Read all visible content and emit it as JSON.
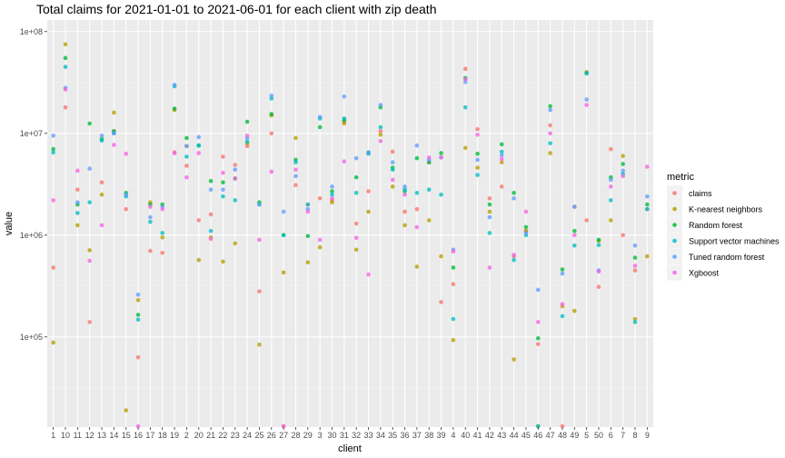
{
  "chart_data": {
    "type": "scatter",
    "title": "Total claims for 2021-01-01 to 2021-06-01 for each client with zip death",
    "xlabel": "client",
    "ylabel": "value",
    "y_scale": "log10",
    "ylim": [
      13000,
      130000000
    ],
    "y_ticks": [
      {
        "value": 100000,
        "label": "1e+05"
      },
      {
        "value": 1000000,
        "label": "1e+06"
      },
      {
        "value": 10000000,
        "label": "1e+07"
      },
      {
        "value": 100000000,
        "label": "1e+08"
      }
    ],
    "grid": true,
    "legend_position": "right",
    "legend_title": "metric",
    "categories": [
      "1",
      "10",
      "11",
      "12",
      "13",
      "14",
      "15",
      "16",
      "17",
      "18",
      "19",
      "2",
      "20",
      "21",
      "22",
      "23",
      "24",
      "25",
      "26",
      "27",
      "28",
      "29",
      "3",
      "30",
      "31",
      "32",
      "33",
      "34",
      "35",
      "36",
      "37",
      "38",
      "39",
      "4",
      "40",
      "41",
      "42",
      "43",
      "44",
      "45",
      "46",
      "47",
      "48",
      "49",
      "5",
      "50",
      "6",
      "7",
      "8",
      "9"
    ],
    "series": [
      {
        "name": "claims",
        "color": "#F8766D",
        "values": [
          480000,
          18000000,
          2800000,
          140000,
          3300000,
          10500000,
          1800000,
          63000,
          700000,
          670000,
          6500000,
          4800000,
          1400000,
          1600000,
          5900000,
          4900000,
          7500000,
          280000,
          10000000,
          12000,
          3100000,
          2000000,
          2300000,
          2200000,
          13000000,
          1300000,
          2700000,
          10500000,
          6600000,
          1700000,
          1800000,
          5200000,
          220000,
          330000,
          43000000,
          11000000,
          2300000,
          3000000,
          620000,
          1100000,
          85000,
          12000000,
          12000,
          1900000,
          1400000,
          310000,
          7000000,
          1000000,
          450000,
          1800000
        ]
      },
      {
        "name": "K-nearest neighbors",
        "color": "#B79F00",
        "values": [
          88000,
          75000000,
          1250000,
          710000,
          2500000,
          16000000,
          19000,
          230000,
          2100000,
          950000,
          17000000,
          7500000,
          570000,
          950000,
          550000,
          830000,
          8000000,
          84000,
          15000000,
          430000,
          9000000,
          540000,
          760000,
          2100000,
          12500000,
          720000,
          1700000,
          9700000,
          3000000,
          1250000,
          490000,
          1400000,
          620000,
          93000,
          7200000,
          4600000,
          1700000,
          5200000,
          60000,
          1100000,
          12000,
          6400000,
          200000,
          180000,
          40000000,
          880000,
          1400000,
          6000000,
          150000,
          620000
        ]
      },
      {
        "name": "Random forest",
        "color": "#00BA38",
        "values": [
          7000000,
          55000000,
          2000000,
          12500000,
          8800000,
          10500000,
          2600000,
          165000,
          2000000,
          2000000,
          17500000,
          9000000,
          7600000,
          3400000,
          3300000,
          3600000,
          13000000,
          2100000,
          15500000,
          1000000,
          5500000,
          980000,
          11500000,
          2700000,
          13500000,
          3700000,
          6500000,
          18000000,
          4600000,
          2700000,
          5700000,
          5200000,
          6400000,
          480000,
          35000000,
          6300000,
          2000000,
          7800000,
          2600000,
          1200000,
          97000,
          18500000,
          460000,
          1100000,
          39000000,
          900000,
          3700000,
          5000000,
          600000,
          2000000
        ]
      },
      {
        "name": "Support vector machines",
        "color": "#00BFC4",
        "values": [
          6500000,
          45000000,
          1650000,
          2100000,
          8500000,
          10000000,
          2400000,
          148000,
          1350000,
          1050000,
          29000000,
          5900000,
          7600000,
          1100000,
          2400000,
          2200000,
          8300000,
          2000000,
          22000000,
          1000000,
          5200000,
          2000000,
          14000000,
          2500000,
          14000000,
          2600000,
          6300000,
          11500000,
          4400000,
          2800000,
          2600000,
          2800000,
          2500000,
          150000,
          18000000,
          3900000,
          1050000,
          6600000,
          570000,
          1000000,
          12000,
          8000000,
          160000,
          790000,
          39000000,
          800000,
          2200000,
          4000000,
          140000,
          1800000
        ]
      },
      {
        "name": "Tuned random forest",
        "color": "#619CFF",
        "values": [
          9500000,
          28000000,
          2100000,
          4500000,
          9500000,
          10000000,
          2500000,
          260000,
          1500000,
          1900000,
          30000000,
          7500000,
          9200000,
          2800000,
          2800000,
          4400000,
          9000000,
          2000000,
          23500000,
          1700000,
          3800000,
          1800000,
          14500000,
          3000000,
          23000000,
          5700000,
          6500000,
          19000000,
          5200000,
          3000000,
          7600000,
          5500000,
          5800000,
          720000,
          32000000,
          5500000,
          1500000,
          6100000,
          2300000,
          1050000,
          290000,
          17000000,
          420000,
          1900000,
          21500000,
          450000,
          3500000,
          4300000,
          790000,
          2400000
        ]
      },
      {
        "name": "Xgboost",
        "color": "#F564E3",
        "values": [
          2200000,
          27000000,
          4300000,
          560000,
          1250000,
          7700000,
          6300000,
          12000,
          1900000,
          1800000,
          6400000,
          3700000,
          6400000,
          920000,
          4100000,
          3600000,
          9500000,
          900000,
          4200000,
          12000,
          4400000,
          1700000,
          900000,
          2300000,
          5300000,
          940000,
          410000,
          8400000,
          3500000,
          2500000,
          1200000,
          5800000,
          5800000,
          690000,
          34000000,
          9700000,
          480000,
          5600000,
          640000,
          1700000,
          140000,
          10000000,
          210000,
          1000000,
          19000000,
          440000,
          3000000,
          3800000,
          500000,
          4700000
        ]
      }
    ]
  }
}
